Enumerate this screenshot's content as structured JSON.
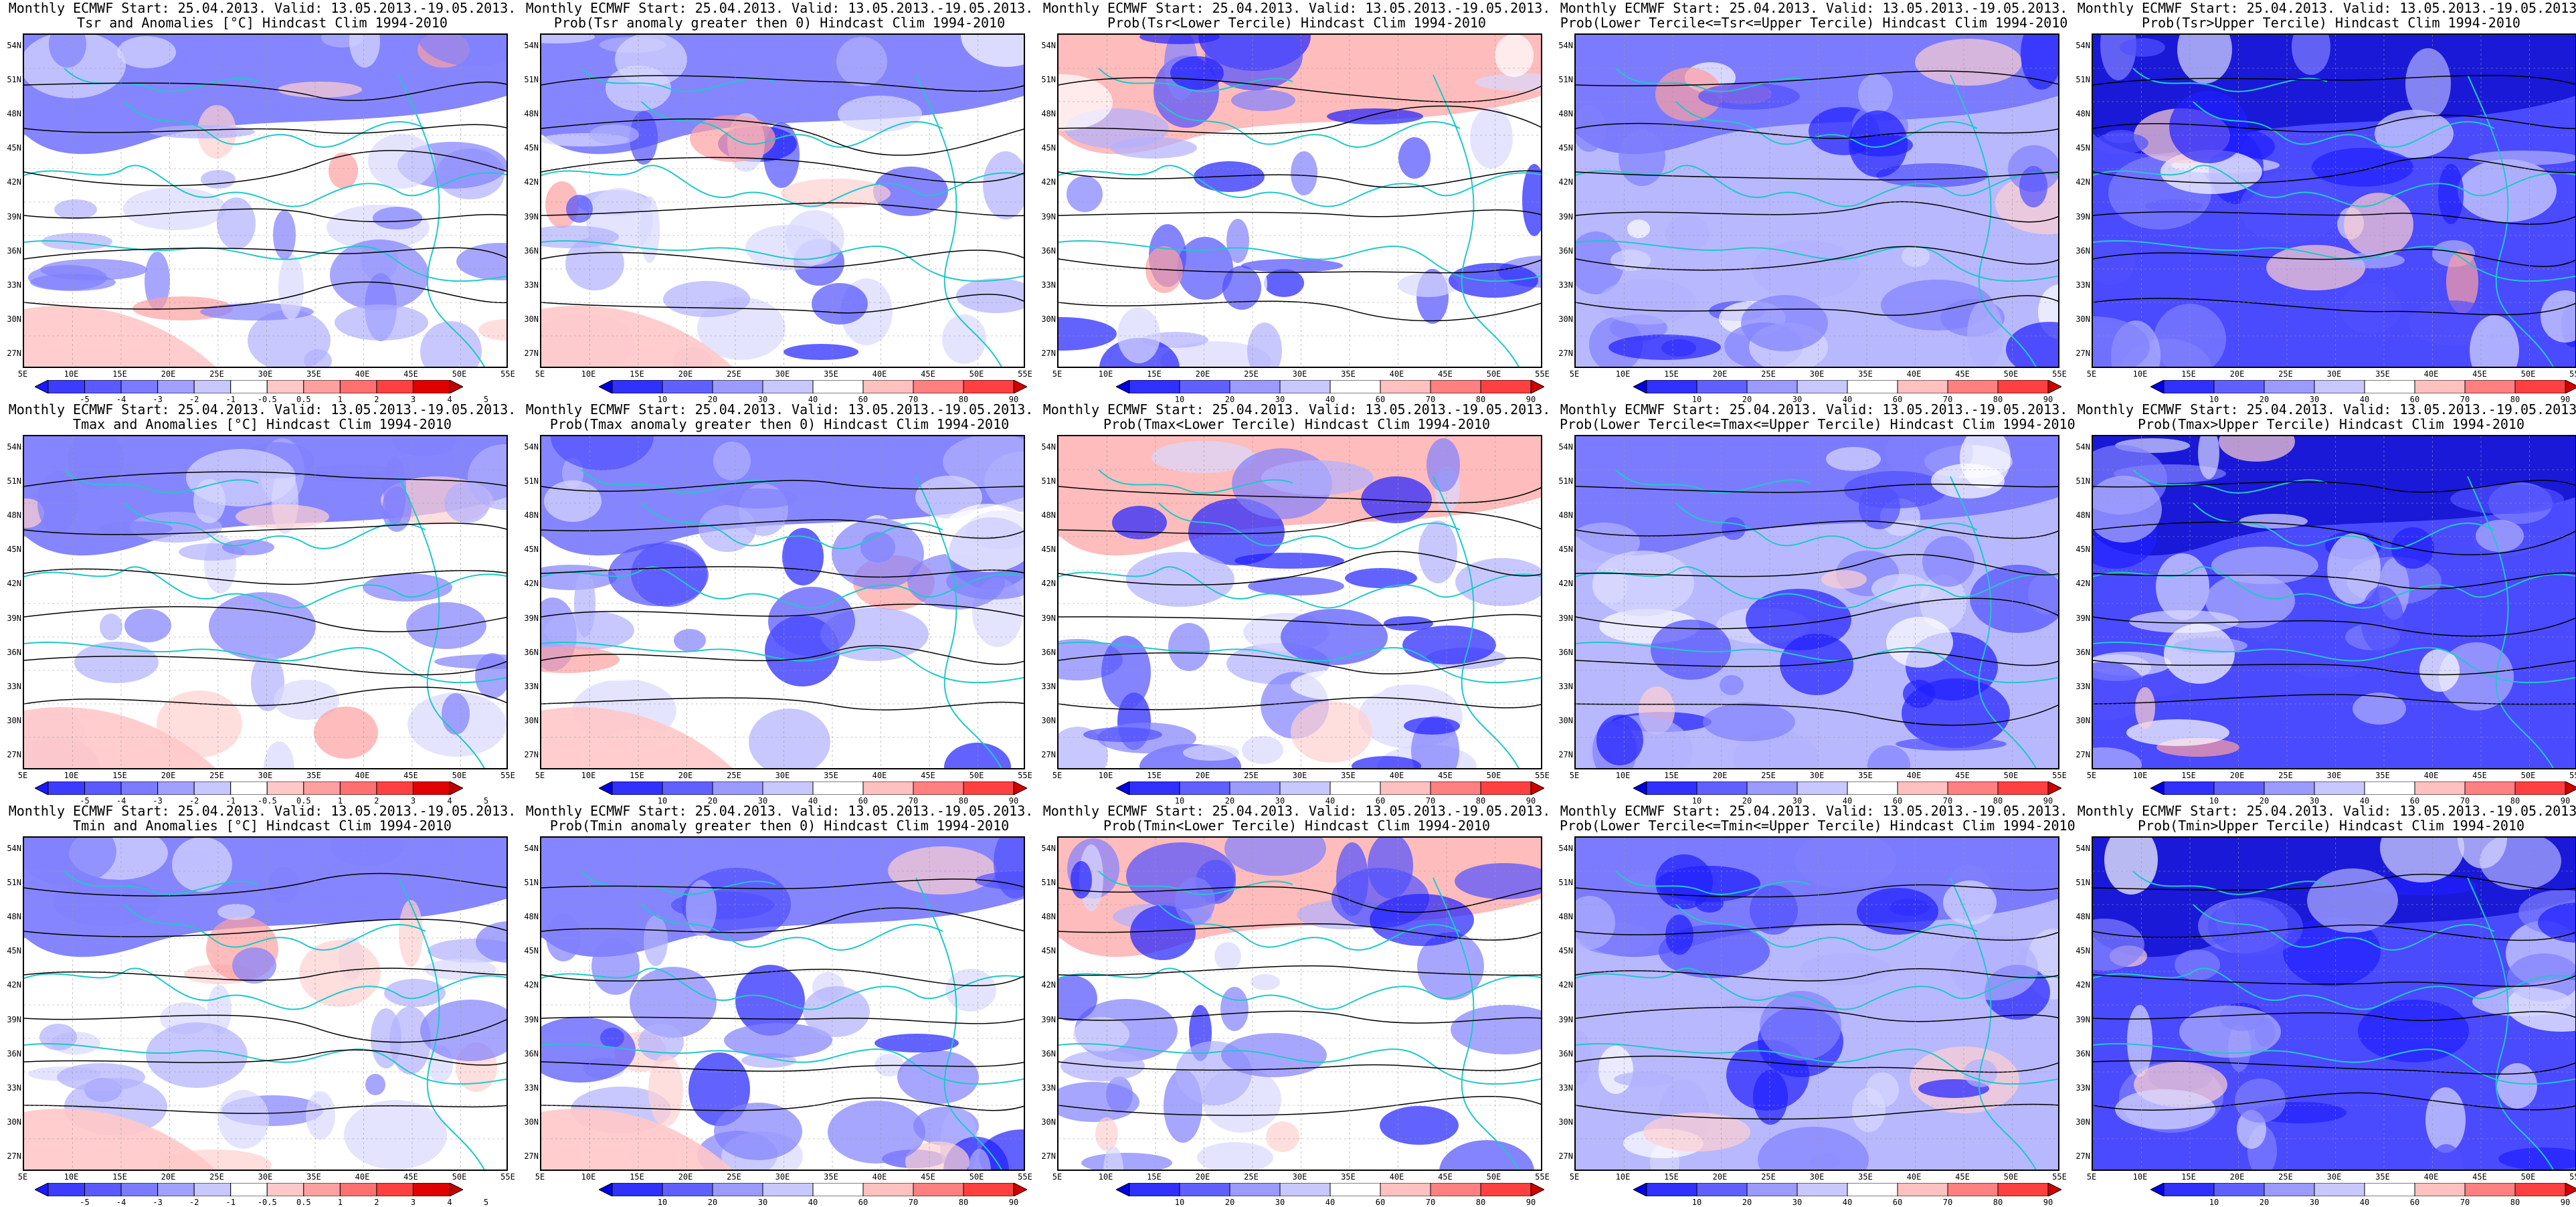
{
  "panels": [
    {
      "line1": "Monthly ECMWF Start: 25.04.2013. Valid: 13.05.2013.-19.05.2013.",
      "line2": "Tsr and Anomalies [°C] Hindcast Clim 1994-2010",
      "type": "anom"
    },
    {
      "line1": "Monthly ECMWF Start: 25.04.2013. Valid: 13.05.2013.-19.05.2013.",
      "line2": "Prob(Tsr anomaly greater then 0) Hindcast Clim 1994-2010",
      "type": "prob"
    },
    {
      "line1": "Monthly ECMWF Start: 25.04.2013. Valid: 13.05.2013.-19.05.2013.",
      "line2": "Prob(Tsr<Lower Tercile) Hindcast Clim 1994-2010",
      "type": "prob"
    },
    {
      "line1": "Monthly ECMWF Start: 25.04.2013. Valid: 13.05.2013.-19.05.2013.",
      "line2": "Prob(Lower Tercile<=Tsr<=Upper Tercile) Hindcast Clim 1994-2010",
      "type": "prob"
    },
    {
      "line1": "Monthly ECMWF Start: 25.04.2013. Valid: 13.05.2013.-19.05.2013.",
      "line2": "Prob(Tsr>Upper Tercile) Hindcast Clim 1994-2010",
      "type": "prob"
    },
    {
      "line1": "Monthly ECMWF Start: 25.04.2013. Valid: 13.05.2013.-19.05.2013.",
      "line2": "Tmax and Anomalies [°C] Hindcast Clim 1994-2010",
      "type": "anom"
    },
    {
      "line1": "Monthly ECMWF Start: 25.04.2013. Valid: 13.05.2013.-19.05.2013.",
      "line2": "Prob(Tmax anomaly greater then 0) Hindcast Clim 1994-2010",
      "type": "prob"
    },
    {
      "line1": "Monthly ECMWF Start: 25.04.2013. Valid: 13.05.2013.-19.05.2013.",
      "line2": "Prob(Tmax<Lower Tercile) Hindcast Clim 1994-2010",
      "type": "prob"
    },
    {
      "line1": "Monthly ECMWF Start: 25.04.2013. Valid: 13.05.2013.-19.05.2013.",
      "line2": "Prob(Lower Tercile<=Tmax<=Upper Tercile) Hindcast Clim 1994-2010",
      "type": "prob"
    },
    {
      "line1": "Monthly ECMWF Start: 25.04.2013. Valid: 13.05.2013.-19.05.2013.",
      "line2": "Prob(Tmax>Upper Tercile) Hindcast Clim 1994-2010",
      "type": "prob"
    },
    {
      "line1": "Monthly ECMWF Start: 25.04.2013. Valid: 13.05.2013.-19.05.2013.",
      "line2": "Tmin and Anomalies [°C] Hindcast Clim 1994-2010",
      "type": "anom"
    },
    {
      "line1": "Monthly ECMWF Start: 25.04.2013. Valid: 13.05.2013.-19.05.2013.",
      "line2": "Prob(Tmin anomaly greater then 0) Hindcast Clim 1994-2010",
      "type": "prob"
    },
    {
      "line1": "Monthly ECMWF Start: 25.04.2013. Valid: 13.05.2013.-19.05.2013.",
      "line2": "Prob(Tmin<Lower Tercile) Hindcast Clim 1994-2010",
      "type": "prob"
    },
    {
      "line1": "Monthly ECMWF Start: 25.04.2013. Valid: 13.05.2013.-19.05.2013.",
      "line2": "Prob(Lower Tercile<=Tmin<=Upper Tercile) Hindcast Clim 1994-2010",
      "type": "prob"
    },
    {
      "line1": "Monthly ECMWF Start: 25.04.2013. Valid: 13.05.2013.-19.05.2013.",
      "line2": "Prob(Tmin>Upper Tercile) Hindcast Clim 1994-2010",
      "type": "prob"
    }
  ],
  "lat_labels": [
    "54N",
    "51N",
    "48N",
    "45N",
    "42N",
    "39N",
    "36N",
    "33N",
    "30N",
    "27N"
  ],
  "lon_labels": [
    "5E",
    "10E",
    "15E",
    "20E",
    "25E",
    "30E",
    "35E",
    "40E",
    "45E",
    "50E",
    "55E"
  ],
  "anom_legend": {
    "labels": [
      "-5",
      "-4",
      "-3",
      "-2",
      "-1",
      "-0.5",
      "0.5",
      "1",
      "2",
      "3",
      "4",
      "5"
    ],
    "colors": [
      "#1a1aff",
      "#3c3cff",
      "#5a5aff",
      "#7b7bff",
      "#a0a0ff",
      "#c8c8ff",
      "#ffffff",
      "#ffc8c8",
      "#ffa0a0",
      "#ff7070",
      "#ff4040",
      "#e00000",
      "#c00000"
    ]
  },
  "prob_legend": {
    "labels": [
      "10",
      "20",
      "30",
      "40",
      "60",
      "70",
      "80",
      "90"
    ],
    "colors": [
      "#0000e0",
      "#3030ff",
      "#6060ff",
      "#9a9aff",
      "#c8c8ff",
      "#ffffff",
      "#ffc0c0",
      "#ff8080",
      "#ff4040",
      "#d00000"
    ]
  },
  "colors": {
    "coast": "#20c8c8",
    "contour": "#000000"
  }
}
